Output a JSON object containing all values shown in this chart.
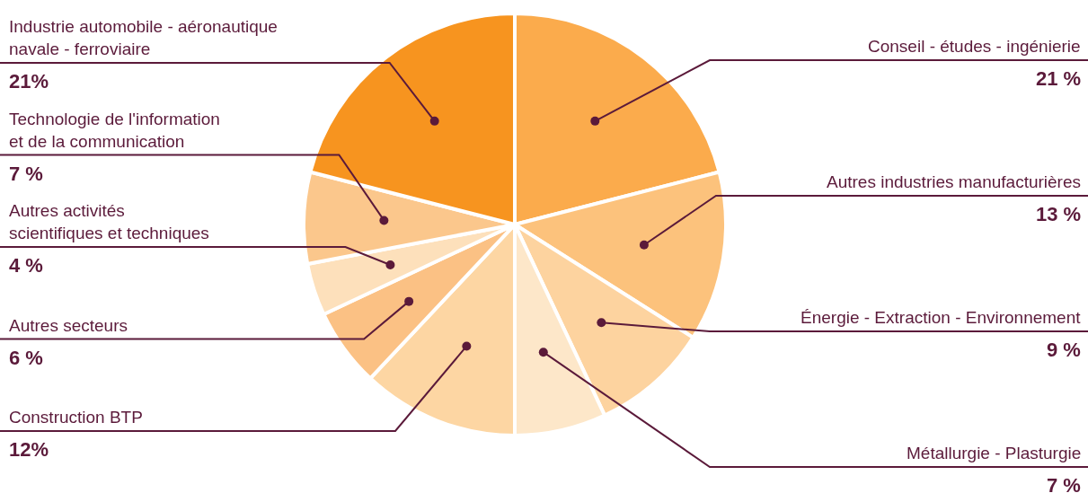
{
  "chart_data": {
    "type": "pie",
    "categories": [
      "Conseil - études - ingénierie",
      "Autres industries manufacturières",
      "Énergie - Extraction - Environnement",
      "Métallurgie - Plasturgie",
      "Construction BTP",
      "Autres secteurs",
      "Autres activités\nscientifiques et techniques",
      "Technologie de l'information\net de la communication",
      "Industrie automobile - aéronautique\nnavale - ferroviaire"
    ],
    "values": [
      21,
      13,
      9,
      7,
      12,
      6,
      4,
      7,
      21
    ],
    "value_labels": [
      "21 %",
      "13 %",
      "9 %",
      "7 %",
      "12%",
      "6 %",
      "4 %",
      "7 %",
      "21%"
    ],
    "colors": [
      "#fbab4c",
      "#fcc27c",
      "#fdd39f",
      "#fde7c9",
      "#fdd6a3",
      "#fbc184",
      "#fde0bb",
      "#fbc78c",
      "#f7941f"
    ]
  }
}
